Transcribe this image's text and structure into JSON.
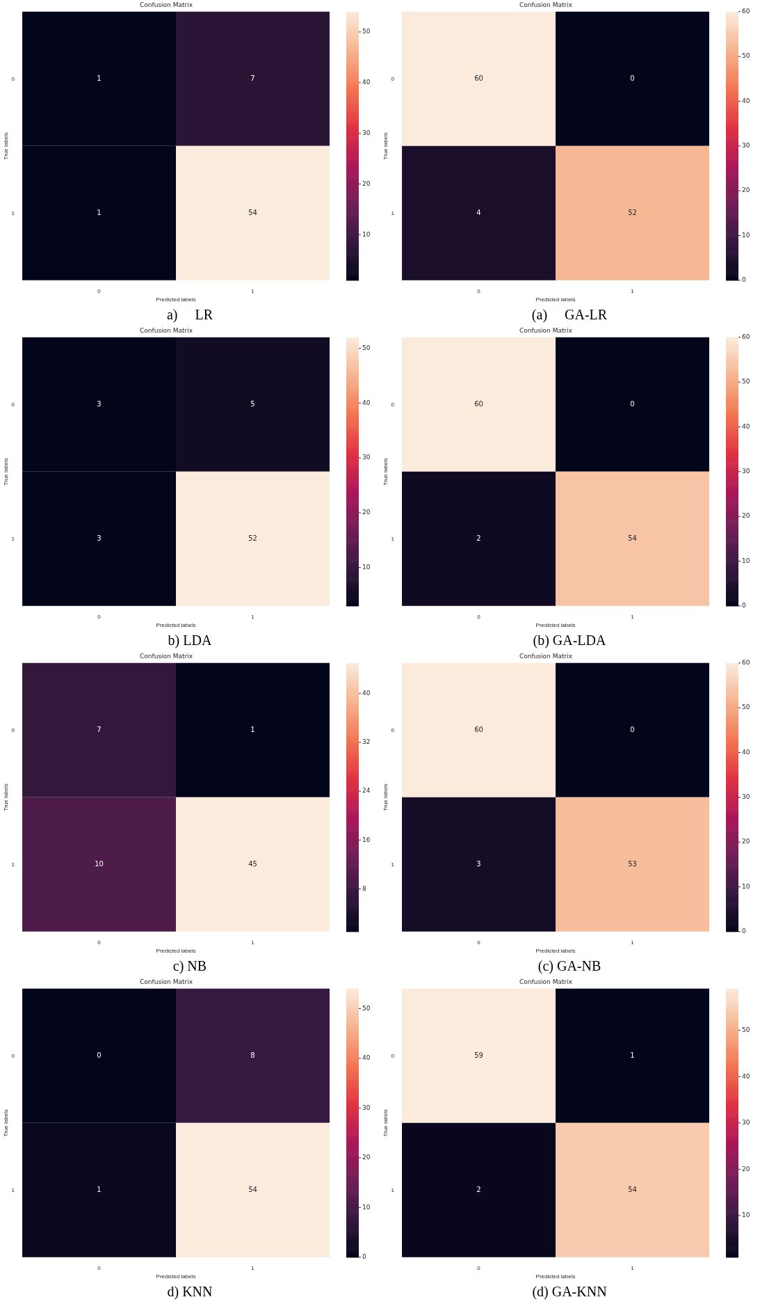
{
  "chart_data": [
    {
      "type": "heatmap",
      "title": "Confusion Matrix",
      "xlabel": "Predicted labels",
      "ylabel": "True labels",
      "categories": [
        "0",
        "1"
      ],
      "y_categories": [
        "0",
        "1"
      ],
      "cells": [
        [
          1,
          7
        ],
        [
          1,
          54
        ]
      ],
      "data_labels": true,
      "clim": [
        1,
        54
      ],
      "cticks": [
        10,
        20,
        30,
        40,
        50
      ],
      "annotations": [
        "a)     LR"
      ]
    },
    {
      "type": "heatmap",
      "title": "Confusion Matrix",
      "xlabel": "Predicted labels",
      "ylabel": "True labels",
      "categories": [
        "0",
        "1"
      ],
      "y_categories": [
        "0",
        "1"
      ],
      "cells": [
        [
          60,
          0
        ],
        [
          4,
          52
        ]
      ],
      "data_labels": true,
      "clim": [
        0,
        60
      ],
      "cticks": [
        0,
        10,
        20,
        30,
        40,
        50,
        60
      ],
      "annotations": [
        "(a)     GA-LR"
      ]
    },
    {
      "type": "heatmap",
      "title": "Confusion Matrix",
      "xlabel": "Predicted labels",
      "ylabel": "True labels",
      "categories": [
        "0",
        "1"
      ],
      "y_categories": [
        "0",
        "1"
      ],
      "cells": [
        [
          3,
          5
        ],
        [
          3,
          52
        ]
      ],
      "data_labels": true,
      "clim": [
        3,
        52
      ],
      "cticks": [
        10,
        20,
        30,
        40,
        50
      ],
      "annotations": [
        "b) LDA"
      ]
    },
    {
      "type": "heatmap",
      "title": "Confusion Matrix",
      "xlabel": "Predicted labels",
      "ylabel": "True labels",
      "categories": [
        "0",
        "1"
      ],
      "y_categories": [
        "0",
        "1"
      ],
      "cells": [
        [
          60,
          0
        ],
        [
          2,
          54
        ]
      ],
      "data_labels": true,
      "clim": [
        0,
        60
      ],
      "cticks": [
        0,
        10,
        20,
        30,
        40,
        50,
        60
      ],
      "annotations": [
        "(b) GA-LDA"
      ]
    },
    {
      "type": "heatmap",
      "title": "Confusion Matrix",
      "xlabel": "Predicted labels",
      "ylabel": "True labels",
      "categories": [
        "0",
        "1"
      ],
      "y_categories": [
        "0",
        "1"
      ],
      "cells": [
        [
          7,
          1
        ],
        [
          10,
          45
        ]
      ],
      "data_labels": true,
      "clim": [
        1,
        45
      ],
      "cticks": [
        8,
        16,
        24,
        32,
        40
      ],
      "annotations": [
        "c) NB"
      ]
    },
    {
      "type": "heatmap",
      "title": "Confusion Matrix",
      "xlabel": "Predicted labels",
      "ylabel": "True labels",
      "categories": [
        "0",
        "1"
      ],
      "y_categories": [
        "0",
        "1"
      ],
      "cells": [
        [
          60,
          0
        ],
        [
          3,
          53
        ]
      ],
      "data_labels": true,
      "clim": [
        0,
        60
      ],
      "cticks": [
        0,
        10,
        20,
        30,
        40,
        50,
        60
      ],
      "annotations": [
        "(c) GA-NB"
      ]
    },
    {
      "type": "heatmap",
      "title": "Confusion Matrix",
      "xlabel": "Predicted labels",
      "ylabel": "True labels",
      "categories": [
        "0",
        "1"
      ],
      "y_categories": [
        "0",
        "1"
      ],
      "cells": [
        [
          0,
          8
        ],
        [
          1,
          54
        ]
      ],
      "data_labels": true,
      "clim": [
        0,
        54
      ],
      "cticks": [
        0,
        10,
        20,
        30,
        40,
        50
      ],
      "annotations": [
        "d) KNN"
      ]
    },
    {
      "type": "heatmap",
      "title": "Confusion Matrix",
      "xlabel": "Predicted labels",
      "ylabel": "True labels",
      "categories": [
        "0",
        "1"
      ],
      "y_categories": [
        "0",
        "1"
      ],
      "cells": [
        [
          59,
          1
        ],
        [
          2,
          54
        ]
      ],
      "data_labels": true,
      "clim": [
        1,
        59
      ],
      "cticks": [
        10,
        20,
        30,
        40,
        50
      ],
      "annotations": [
        "(d) GA-KNN"
      ]
    }
  ]
}
